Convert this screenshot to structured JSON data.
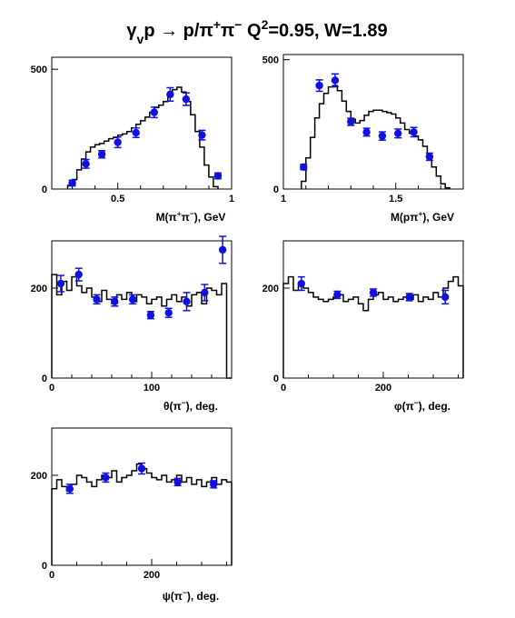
{
  "title": {
    "parts": [
      {
        "t": "γ"
      },
      {
        "t": "v",
        "shift": "sub"
      },
      {
        "t": "p → p"
      },
      {
        "t": "/"
      },
      {
        "t": "π"
      },
      {
        "t": "+",
        "shift": "sup"
      },
      {
        "t": "π"
      },
      {
        "t": "−",
        "shift": "sup"
      },
      {
        "t": "   Q"
      },
      {
        "t": "2",
        "shift": "sup"
      },
      {
        "t": "=0.95, W=1.89"
      }
    ]
  },
  "colors": {
    "points": "#1010e0",
    "histogram": "#000000"
  },
  "chart_data": [
    {
      "type": "scatter",
      "xlabel": "M(π+π−), GeV",
      "xlabel_parts": [
        {
          "t": "M(π"
        },
        {
          "t": "+",
          "shift": "sup"
        },
        {
          "t": "π"
        },
        {
          "t": "−",
          "shift": "sup"
        },
        {
          "t": "), GeV"
        }
      ],
      "xlim": [
        0.21,
        1.0
      ],
      "ylim": [
        0,
        550
      ],
      "xticks": [
        {
          "v": 0.5,
          "label": "0.5"
        },
        {
          "v": 1.0,
          "label": "1"
        }
      ],
      "yticks": [
        {
          "v": 0,
          "label": "0"
        },
        {
          "v": 500,
          "label": "500"
        }
      ],
      "minor_x": [
        0.3,
        0.4,
        0.6,
        0.7,
        0.8,
        0.9
      ],
      "histogram": {
        "edges": [
          0.28,
          0.3,
          0.32,
          0.34,
          0.36,
          0.38,
          0.4,
          0.42,
          0.44,
          0.46,
          0.48,
          0.5,
          0.52,
          0.54,
          0.56,
          0.58,
          0.6,
          0.62,
          0.64,
          0.66,
          0.68,
          0.7,
          0.72,
          0.74,
          0.76,
          0.78,
          0.8,
          0.82,
          0.84,
          0.86,
          0.88,
          0.9,
          0.92,
          0.94
        ],
        "values": [
          15,
          40,
          80,
          125,
          155,
          175,
          185,
          190,
          200,
          210,
          215,
          225,
          230,
          240,
          255,
          270,
          285,
          300,
          320,
          340,
          350,
          365,
          385,
          415,
          425,
          405,
          365,
          310,
          240,
          175,
          100,
          50,
          10
        ]
      },
      "series": [
        {
          "x": [
            0.3,
            0.36,
            0.43,
            0.5,
            0.58,
            0.66,
            0.73,
            0.8,
            0.87,
            0.94
          ],
          "y": [
            25,
            105,
            145,
            195,
            235,
            320,
            395,
            375,
            225,
            55
          ],
          "err": [
            12,
            18,
            15,
            22,
            20,
            22,
            28,
            26,
            20,
            12
          ]
        }
      ]
    },
    {
      "type": "scatter",
      "xlabel": "M(pπ+), GeV",
      "xlabel_parts": [
        {
          "t": "M(pπ"
        },
        {
          "t": "+",
          "shift": "sup"
        },
        {
          "t": "), GeV"
        }
      ],
      "xlim": [
        1.0,
        1.8
      ],
      "ylim": [
        0,
        520
      ],
      "xticks": [
        {
          "v": 1.0,
          "label": "1"
        },
        {
          "v": 1.5,
          "label": "1.5"
        }
      ],
      "yticks": [
        {
          "v": 0,
          "label": "0"
        },
        {
          "v": 500,
          "label": "500"
        }
      ],
      "minor_x": [
        1.1,
        1.2,
        1.3,
        1.4,
        1.6,
        1.7
      ],
      "histogram": {
        "edges": [
          1.08,
          1.1,
          1.12,
          1.14,
          1.16,
          1.18,
          1.2,
          1.22,
          1.24,
          1.26,
          1.28,
          1.3,
          1.32,
          1.34,
          1.36,
          1.38,
          1.4,
          1.42,
          1.44,
          1.46,
          1.48,
          1.5,
          1.52,
          1.54,
          1.56,
          1.58,
          1.6,
          1.62,
          1.64,
          1.66,
          1.68,
          1.7,
          1.72,
          1.74
        ],
        "values": [
          30,
          120,
          200,
          275,
          330,
          370,
          395,
          400,
          380,
          340,
          300,
          270,
          255,
          265,
          285,
          300,
          305,
          305,
          300,
          295,
          290,
          275,
          255,
          230,
          215,
          205,
          190,
          165,
          130,
          85,
          50,
          20,
          5
        ]
      },
      "series": [
        {
          "x": [
            1.09,
            1.16,
            1.23,
            1.3,
            1.37,
            1.44,
            1.51,
            1.58,
            1.65
          ],
          "y": [
            85,
            400,
            420,
            260,
            220,
            205,
            215,
            220,
            125
          ],
          "err": [
            10,
            22,
            25,
            14,
            15,
            16,
            17,
            18,
            14
          ]
        }
      ]
    },
    {
      "type": "scatter",
      "xlabel": "θ(π−), deg.",
      "xlabel_parts": [
        {
          "t": "θ(π"
        },
        {
          "t": "−",
          "shift": "sup"
        },
        {
          "t": "), deg."
        }
      ],
      "xlim": [
        0,
        180
      ],
      "ylim": [
        0,
        305
      ],
      "xticks": [
        {
          "v": 0,
          "label": "0"
        },
        {
          "v": 100,
          "label": "100"
        }
      ],
      "yticks": [
        {
          "v": 0,
          "label": "0"
        },
        {
          "v": 200,
          "label": "200"
        }
      ],
      "minor_x": [
        20,
        40,
        60,
        80,
        120,
        140,
        160
      ],
      "histogram": {
        "edges": [
          0,
          5,
          10,
          15,
          20,
          25,
          30,
          35,
          40,
          45,
          50,
          55,
          60,
          65,
          70,
          75,
          80,
          85,
          90,
          95,
          100,
          105,
          110,
          115,
          120,
          125,
          130,
          135,
          140,
          145,
          150,
          155,
          160,
          165,
          170,
          175,
          180
        ],
        "values": [
          230,
          185,
          215,
          195,
          225,
          205,
          190,
          200,
          180,
          170,
          195,
          175,
          165,
          185,
          175,
          190,
          170,
          185,
          180,
          165,
          175,
          180,
          160,
          175,
          185,
          170,
          180,
          160,
          185,
          190,
          165,
          200,
          195,
          185,
          210,
          0
        ]
      },
      "series": [
        {
          "x": [
            9,
            27,
            45,
            63,
            81,
            99,
            117,
            135,
            153,
            171
          ],
          "y": [
            210,
            230,
            175,
            170,
            175,
            140,
            145,
            170,
            190,
            285
          ],
          "err": [
            18,
            14,
            10,
            10,
            10,
            8,
            10,
            20,
            18,
            30
          ]
        }
      ]
    },
    {
      "type": "scatter",
      "xlabel": "φ(π−), deg.",
      "xlabel_parts": [
        {
          "t": "φ(π"
        },
        {
          "t": "−",
          "shift": "sup"
        },
        {
          "t": "), deg."
        }
      ],
      "xlim": [
        0,
        360
      ],
      "ylim": [
        0,
        305
      ],
      "xticks": [
        {
          "v": 0,
          "label": "0"
        },
        {
          "v": 200,
          "label": "200"
        }
      ],
      "yticks": [
        {
          "v": 0,
          "label": "0"
        },
        {
          "v": 200,
          "label": "200"
        }
      ],
      "minor_x": [
        50,
        100,
        150,
        250,
        300,
        350
      ],
      "histogram": {
        "edges": [
          0,
          10,
          20,
          30,
          40,
          50,
          60,
          70,
          80,
          90,
          100,
          110,
          120,
          130,
          140,
          150,
          160,
          170,
          180,
          190,
          200,
          210,
          220,
          230,
          240,
          250,
          260,
          270,
          280,
          290,
          300,
          310,
          320,
          330,
          340,
          350,
          360
        ],
        "values": [
          210,
          225,
          195,
          210,
          200,
          190,
          180,
          175,
          170,
          175,
          180,
          185,
          170,
          175,
          180,
          165,
          150,
          175,
          185,
          190,
          175,
          180,
          170,
          175,
          180,
          175,
          185,
          170,
          180,
          175,
          190,
          180,
          200,
          215,
          225,
          205
        ]
      },
      "series": [
        {
          "x": [
            36,
            108,
            180,
            252,
            324
          ],
          "y": [
            210,
            185,
            190,
            180,
            180
          ],
          "err": [
            15,
            8,
            8,
            8,
            15
          ]
        }
      ]
    },
    {
      "type": "scatter",
      "xlabel": "ψ(π−), deg.",
      "xlabel_parts": [
        {
          "t": "ψ(π"
        },
        {
          "t": "−",
          "shift": "sup"
        },
        {
          "t": "), deg."
        }
      ],
      "xlim": [
        0,
        360
      ],
      "ylim": [
        0,
        305
      ],
      "xticks": [
        {
          "v": 0,
          "label": "0"
        },
        {
          "v": 200,
          "label": "200"
        }
      ],
      "yticks": [
        {
          "v": 0,
          "label": "0"
        },
        {
          "v": 200,
          "label": "200"
        }
      ],
      "minor_x": [
        50,
        100,
        150,
        250,
        300,
        350
      ],
      "histogram": {
        "edges": [
          0,
          10,
          20,
          30,
          40,
          50,
          60,
          70,
          80,
          90,
          100,
          110,
          120,
          130,
          140,
          150,
          160,
          170,
          180,
          190,
          200,
          210,
          220,
          230,
          240,
          250,
          260,
          270,
          280,
          290,
          300,
          310,
          320,
          330,
          340,
          350,
          360
        ],
        "values": [
          170,
          190,
          175,
          165,
          180,
          200,
          195,
          185,
          175,
          190,
          200,
          195,
          210,
          185,
          195,
          200,
          210,
          225,
          215,
          205,
          195,
          190,
          200,
          185,
          190,
          200,
          185,
          195,
          180,
          190,
          175,
          185,
          195,
          180,
          190,
          185
        ]
      },
      "series": [
        {
          "x": [
            36,
            108,
            180,
            252,
            324
          ],
          "y": [
            170,
            195,
            215,
            185,
            180
          ],
          "err": [
            10,
            10,
            12,
            8,
            8
          ]
        }
      ]
    }
  ]
}
